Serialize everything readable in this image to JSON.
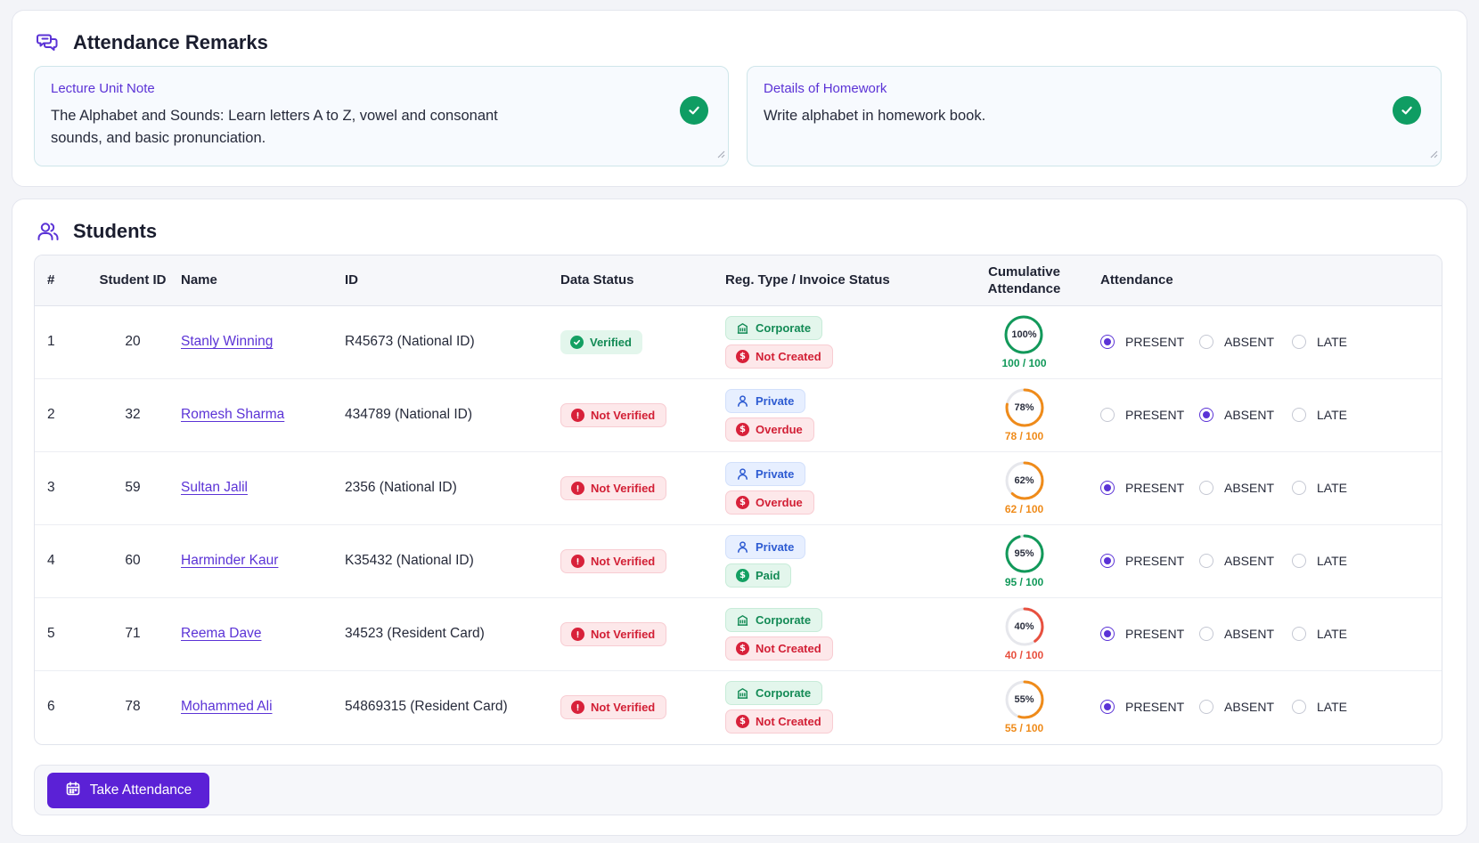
{
  "remarks": {
    "title": "Attendance Remarks",
    "lecture_label": "Lecture Unit Note",
    "lecture_text": "The Alphabet and Sounds: Learn letters A to Z, vowel and consonant sounds, and basic pronunciation.",
    "homework_label": "Details of Homework",
    "homework_text": "Write alphabet in homework book."
  },
  "students": {
    "title": "Students",
    "columns": {
      "num": "#",
      "student_id": "Student ID",
      "name": "Name",
      "id": "ID",
      "data_status": "Data Status",
      "reg_type": "Reg. Type / Invoice Status",
      "cumulative_line1": "Cumulative",
      "cumulative_line2": "Attendance",
      "attendance": "Attendance"
    },
    "attendance_options": {
      "present": "PRESENT",
      "absent": "ABSENT",
      "late": "LATE"
    },
    "rows": [
      {
        "num": "1",
        "student_id": "20",
        "name": "Stanly Winning",
        "id_doc": "R45673 (National ID)",
        "data_status": "Verified",
        "reg_type": "Corporate",
        "invoice": "Not Created",
        "pct_label": "100%",
        "score": "100 / 100",
        "pct": 100,
        "attendance": "present"
      },
      {
        "num": "2",
        "student_id": "32",
        "name": "Romesh Sharma",
        "id_doc": "434789 (National ID)",
        "data_status": "Not Verified",
        "reg_type": "Private",
        "invoice": "Overdue",
        "pct_label": "78%",
        "score": "78 / 100",
        "pct": 78,
        "attendance": "absent"
      },
      {
        "num": "3",
        "student_id": "59",
        "name": "Sultan Jalil",
        "id_doc": "2356 (National ID)",
        "data_status": "Not Verified",
        "reg_type": "Private",
        "invoice": "Overdue",
        "pct_label": "62%",
        "score": "62 / 100",
        "pct": 62,
        "attendance": "present"
      },
      {
        "num": "4",
        "student_id": "60",
        "name": "Harminder Kaur",
        "id_doc": "K35432 (National ID)",
        "data_status": "Not Verified",
        "reg_type": "Private",
        "invoice": "Paid",
        "pct_label": "95%",
        "score": "95 / 100",
        "pct": 95,
        "attendance": "present"
      },
      {
        "num": "5",
        "student_id": "71",
        "name": "Reema Dave",
        "id_doc": "34523 (Resident Card)",
        "data_status": "Not Verified",
        "reg_type": "Corporate",
        "invoice": "Not Created",
        "pct_label": "40%",
        "score": "40 / 100",
        "pct": 40,
        "attendance": "present"
      },
      {
        "num": "6",
        "student_id": "78",
        "name": "Mohammed Ali",
        "id_doc": "54869315 (Resident Card)",
        "data_status": "Not Verified",
        "reg_type": "Corporate",
        "invoice": "Not Created",
        "pct_label": "55%",
        "score": "55 / 100",
        "pct": 55,
        "attendance": "present"
      }
    ]
  },
  "action": {
    "take_attendance_label": "Take Attendance"
  },
  "colors": {
    "accent": "#5b21d6",
    "link": "#5b33d6",
    "gauge_green": "#12995a",
    "gauge_orange": "#ef8b1a",
    "gauge_red": "#e8503f",
    "gauge_track": "#e6e7ec"
  }
}
